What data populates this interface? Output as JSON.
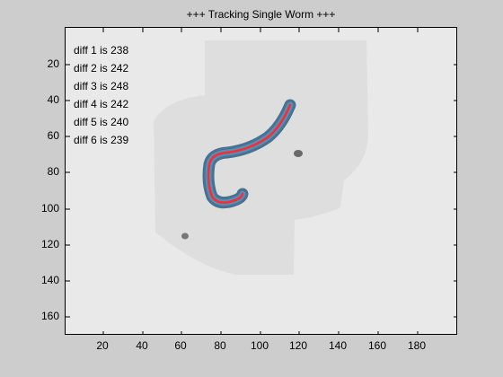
{
  "figure": {
    "title": "+++ Tracking Single Worm +++"
  },
  "axes": {
    "x_ticks": [
      "20",
      "40",
      "60",
      "80",
      "100",
      "120",
      "140",
      "160",
      "180"
    ],
    "y_ticks": [
      "20",
      "40",
      "60",
      "80",
      "100",
      "120",
      "140",
      "160"
    ],
    "x_range": [
      1,
      200
    ],
    "y_range": [
      1,
      171
    ],
    "y_reversed": true
  },
  "annotations": [
    "diff 1 is 238",
    "diff 2 is 242",
    "diff 3 is 248",
    "diff 4 is 242",
    "diff 5 is 240",
    "diff 6 is 239"
  ],
  "colors": {
    "background": "#cdcdcd",
    "image_bg": "#e9e9e9",
    "worm_body": "#2e5f80",
    "tracking_line": "#ff2a2a"
  }
}
